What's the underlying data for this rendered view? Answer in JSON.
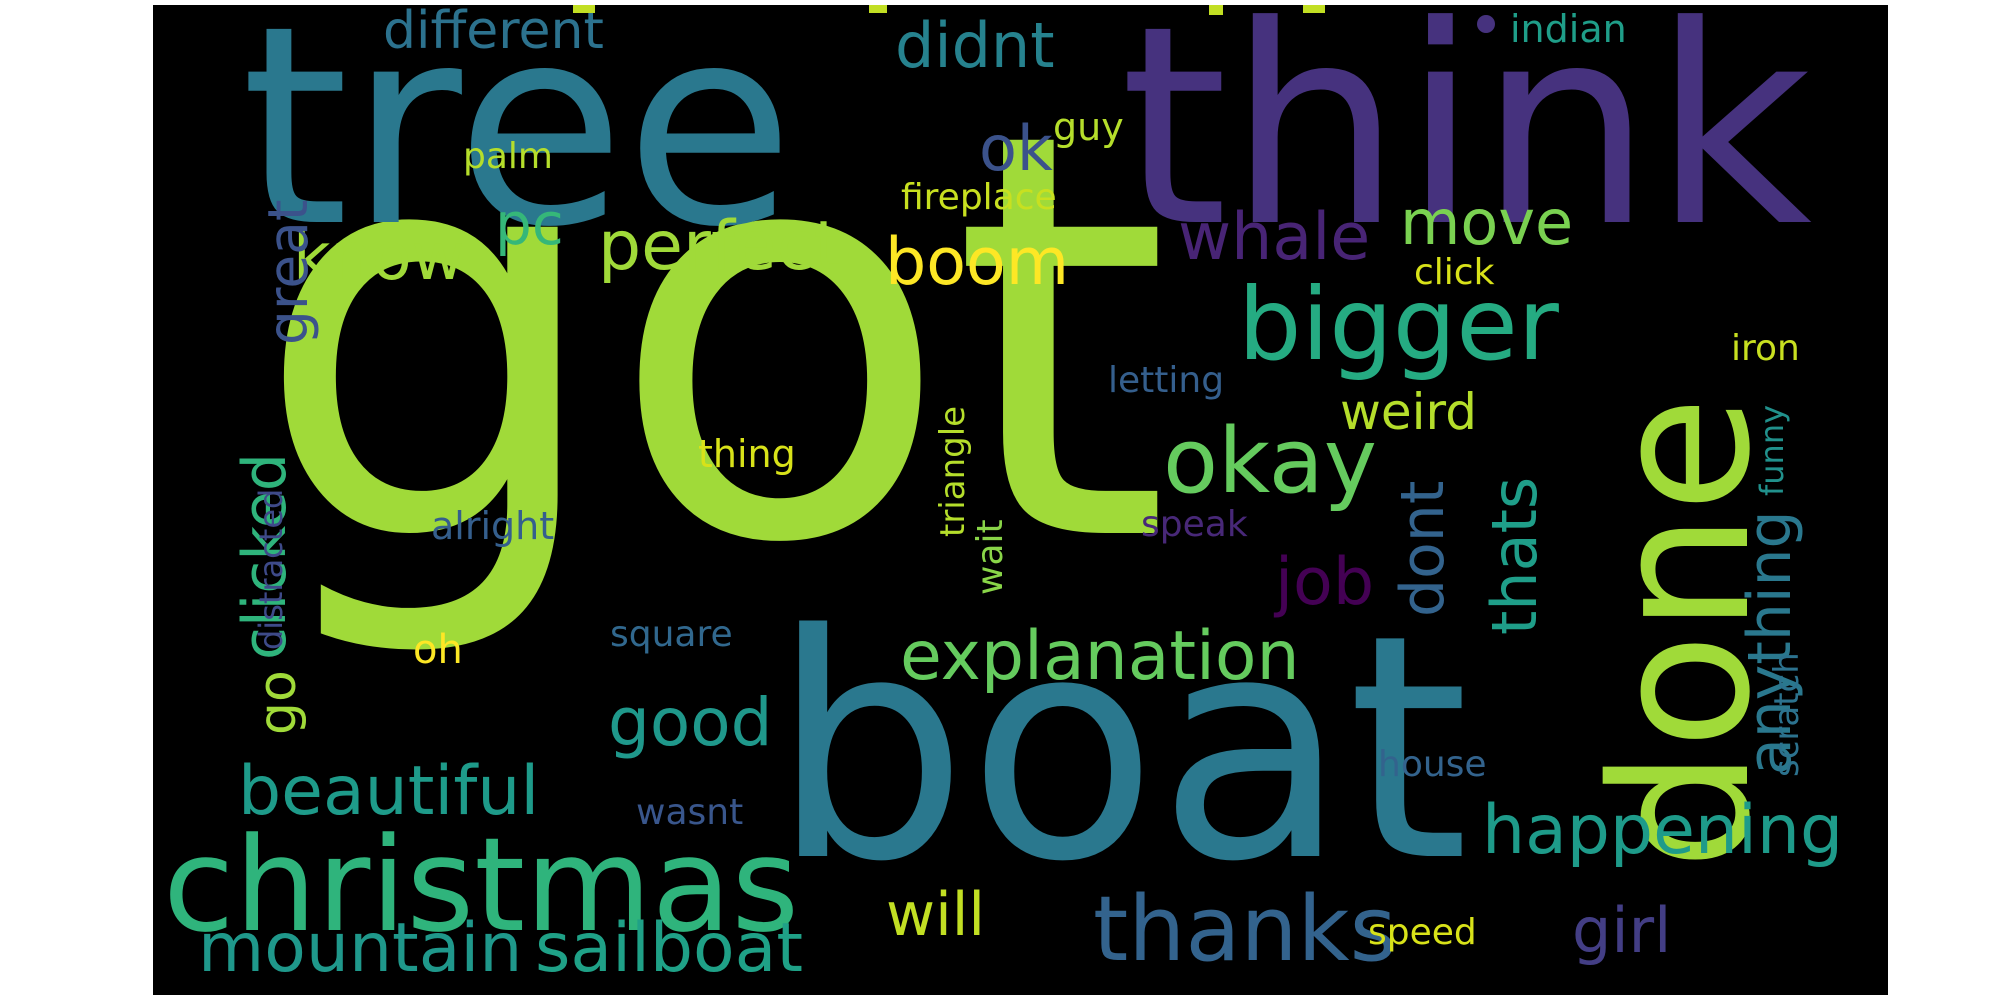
{
  "words": [
    {
      "text": "got",
      "color": "#a0da39"
    },
    {
      "text": "tree",
      "color": "#2a788e"
    },
    {
      "text": "think",
      "color": "#46327e"
    },
    {
      "text": "boat",
      "color": "#2a788e"
    },
    {
      "text": "done",
      "color": "#a0da39"
    },
    {
      "text": "christmas",
      "color": "#2fb47c"
    },
    {
      "text": "bigger",
      "color": "#25ab82"
    },
    {
      "text": "okay",
      "color": "#65cb5e"
    },
    {
      "text": "thanks",
      "color": "#33638d"
    },
    {
      "text": "explanation",
      "color": "#65cb5e"
    },
    {
      "text": "happening",
      "color": "#1e9b8a"
    },
    {
      "text": "perfect",
      "color": "#a0da39"
    },
    {
      "text": "beautiful",
      "color": "#1e9b8a"
    },
    {
      "text": "mountain",
      "color": "#1f988b"
    },
    {
      "text": "sailboat",
      "color": "#1fa187"
    },
    {
      "text": "clicked",
      "color": "#2fb47c"
    },
    {
      "text": "anything",
      "color": "#2a788e"
    },
    {
      "text": "different",
      "color": "#2c728e"
    },
    {
      "text": "didnt",
      "color": "#26828e"
    },
    {
      "text": "boom",
      "color": "#fde725"
    },
    {
      "text": "know",
      "color": "#a0da39"
    },
    {
      "text": "whale",
      "color": "#482475"
    },
    {
      "text": "move",
      "color": "#7ad151"
    },
    {
      "text": "good",
      "color": "#1f988b"
    },
    {
      "text": "will",
      "color": "#c2df23"
    },
    {
      "text": "girl",
      "color": "#433e85"
    },
    {
      "text": "job",
      "color": "#440154"
    },
    {
      "text": "thats",
      "color": "#1f9e89"
    },
    {
      "text": "dont",
      "color": "#33638d"
    },
    {
      "text": "great",
      "color": "#3b528b"
    },
    {
      "text": "ok",
      "color": "#3b528b"
    },
    {
      "text": "pc",
      "color": "#35b779"
    },
    {
      "text": "weird",
      "color": "#b5de2b"
    },
    {
      "text": "go",
      "color": "#a0da39"
    },
    {
      "text": "distracted",
      "color": "#3e4a89"
    },
    {
      "text": "triangle",
      "color": "#b5de2b"
    },
    {
      "text": "fireplace",
      "color": "#c8e020"
    },
    {
      "text": "guy",
      "color": "#b5de2b"
    },
    {
      "text": "palm",
      "color": "#b5de2b"
    },
    {
      "text": "click",
      "color": "#d8e219"
    },
    {
      "text": "iron",
      "color": "#c8e020"
    },
    {
      "text": "letting",
      "color": "#355f8d"
    },
    {
      "text": "funny",
      "color": "#21918c"
    },
    {
      "text": "thing",
      "color": "#d8e219"
    },
    {
      "text": "speak",
      "color": "#482878"
    },
    {
      "text": "alright",
      "color": "#355f8d"
    },
    {
      "text": "wait",
      "color": "#89d548"
    },
    {
      "text": "scratch",
      "color": "#2c728e"
    },
    {
      "text": "square",
      "color": "#31688e"
    },
    {
      "text": "oh",
      "color": "#fde725"
    },
    {
      "text": "house",
      "color": "#33638d"
    },
    {
      "text": "wasnt",
      "color": "#39568c"
    },
    {
      "text": "speed",
      "color": "#d8e219"
    },
    {
      "text": "indian",
      "color": "#1f9e89"
    }
  ]
}
